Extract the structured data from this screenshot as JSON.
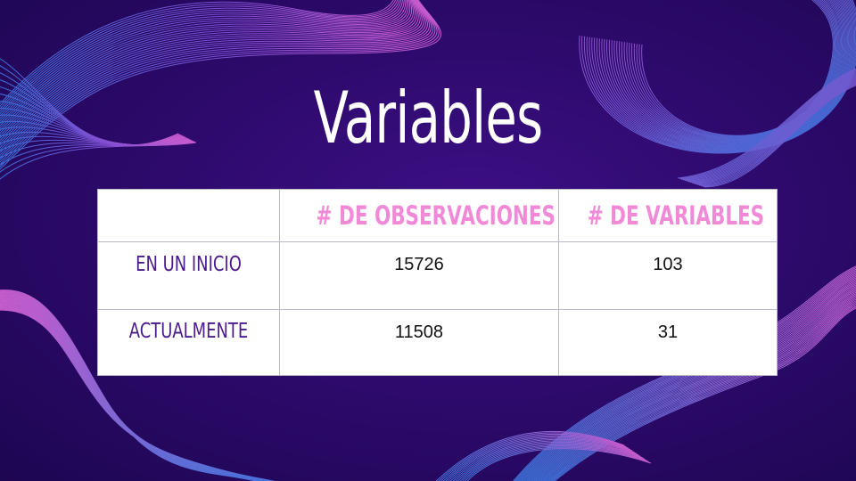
{
  "slide": {
    "title": "Variables"
  },
  "table": {
    "headers": [
      "",
      "# DE OBSERVACIONES",
      "# DE VARIABLES"
    ],
    "rows": [
      {
        "label": "EN UN INICIO",
        "observaciones": "15726",
        "variables": "103"
      },
      {
        "label": "ACTUALMENTE",
        "observaciones": "11508",
        "variables": "31"
      }
    ]
  },
  "colors": {
    "background": "#2e0a6d",
    "title": "#ffffff",
    "header_text": "#f08ad6",
    "row_label_text": "#4a1a8c",
    "wave_blue": "#3f7df0",
    "wave_pink": "#e05fe0"
  }
}
